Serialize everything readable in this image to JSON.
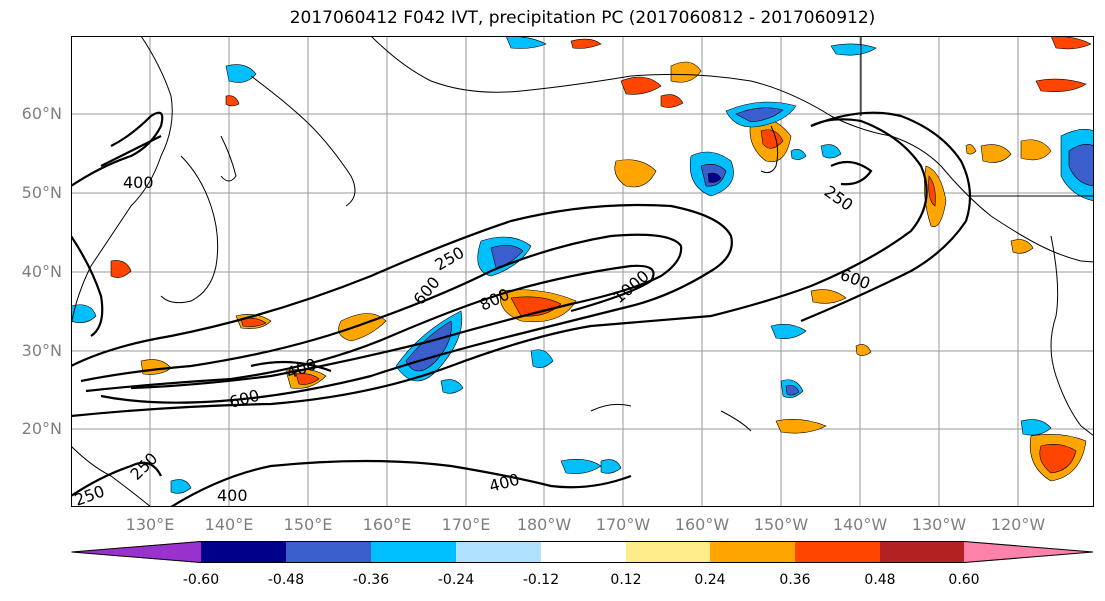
{
  "title": "2017060412 F042 IVT, precipitation PC (2017060812 - 2017060912)",
  "lat_labels": [
    "60°N",
    "50°N",
    "40°N",
    "30°N",
    "20°N"
  ],
  "lon_labels": [
    "130°E",
    "140°E",
    "150°E",
    "160°E",
    "170°E",
    "180°W",
    "170°W",
    "160°W",
    "150°W",
    "140°W",
    "130°W",
    "120°W"
  ],
  "contour_labels": [
    "400",
    "250",
    "600",
    "800",
    "1000",
    "250",
    "600",
    "400",
    "600",
    "250",
    "400",
    "400",
    "250"
  ],
  "colorbar": {
    "colors": [
      "#9932cc",
      "#00008b",
      "#3a5fcd",
      "#00bfff",
      "#b0e2ff",
      "#ffffff",
      "#ffec8b",
      "#ffa500",
      "#ff4500",
      "#b22222",
      "#ff82ab"
    ],
    "ticks": [
      "-0.60",
      "-0.48",
      "-0.36",
      "-0.24",
      "-0.12",
      "0.12",
      "0.24",
      "0.36",
      "0.48",
      "0.60"
    ]
  }
}
